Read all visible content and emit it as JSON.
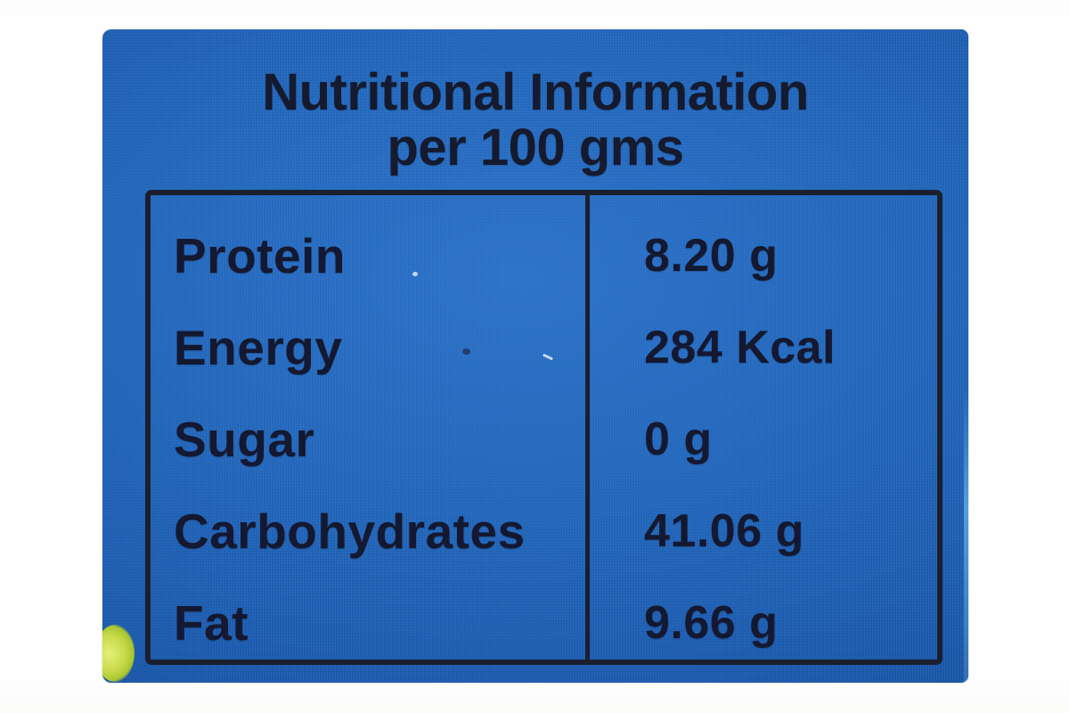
{
  "label": {
    "title_line1": "Nutritional Information",
    "title_line2": "per 100 gms",
    "table": {
      "rows": [
        {
          "label": "Protein",
          "value": "8.20 g"
        },
        {
          "label": "Energy",
          "value": "284 Kcal"
        },
        {
          "label": "Sugar",
          "value": "0 g"
        },
        {
          "label": "Carbohydrates",
          "value": "41.06 g"
        },
        {
          "label": "Fat",
          "value": "9.66 g"
        }
      ]
    },
    "colors": {
      "label_blue": "#2368bd",
      "label_blue_light": "#2d74cc",
      "label_blue_dark": "#174f9b",
      "ink": "#141830",
      "table_border": "#1a1f2e",
      "background_white": "#ffffff",
      "smudge_green": "#c6da4a"
    }
  }
}
